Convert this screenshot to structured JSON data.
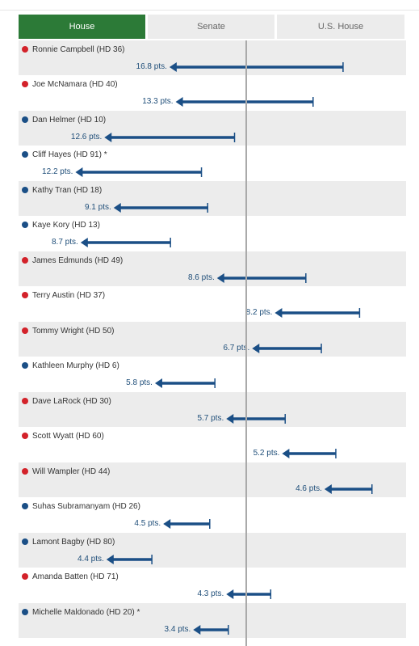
{
  "tabs": [
    {
      "label": "House",
      "active": true
    },
    {
      "label": "Senate",
      "active": false
    },
    {
      "label": "U.S. House",
      "active": false
    }
  ],
  "colors": {
    "republican": "#d3222a",
    "democrat": "#1b4f86",
    "arrow": "#1b4f86",
    "active_tab": "#2c7a37",
    "row_shade": "#ececec",
    "center_line": "#aaaaaa"
  },
  "chart_data": {
    "type": "bar",
    "unit_suffix": " pts.",
    "rows": [
      {
        "name": "Ronnie Campbell (HD 36)",
        "party": "R",
        "shift": 16.8,
        "start": 9.4,
        "end": -7.4,
        "label": "16.8 pts."
      },
      {
        "name": "Joe McNamara (HD 40)",
        "party": "R",
        "shift": 13.3,
        "start": 6.5,
        "end": -6.8,
        "label": "13.3 pts."
      },
      {
        "name": "Dan Helmer (HD 10)",
        "party": "D",
        "shift": 12.6,
        "start": -1.1,
        "end": -13.7,
        "label": "12.6 pts."
      },
      {
        "name": "Cliff Hayes (HD 91) *",
        "party": "D",
        "shift": 12.2,
        "start": -4.3,
        "end": -16.5,
        "label": "12.2 pts."
      },
      {
        "name": "Kathy Tran (HD 18)",
        "party": "D",
        "shift": 9.1,
        "start": -3.7,
        "end": -12.8,
        "label": "9.1 pts."
      },
      {
        "name": "Kaye Kory (HD 13)",
        "party": "D",
        "shift": 8.7,
        "start": -7.3,
        "end": -16.0,
        "label": "8.7 pts."
      },
      {
        "name": "James Edmunds (HD 49)",
        "party": "R",
        "shift": 8.6,
        "start": 5.8,
        "end": -2.8,
        "label": "8.6 pts."
      },
      {
        "name": "Terry Austin (HD 37)",
        "party": "R",
        "shift": 8.2,
        "start": 11.0,
        "end": 2.8,
        "label": "8.2 pts."
      },
      {
        "name": "Tommy Wright (HD 50)",
        "party": "R",
        "shift": 6.7,
        "start": 7.3,
        "end": 0.6,
        "label": "6.7 pts."
      },
      {
        "name": "Kathleen Murphy (HD 6)",
        "party": "D",
        "shift": 5.8,
        "start": -3.0,
        "end": -8.8,
        "label": "5.8 pts."
      },
      {
        "name": "Dave LaRock (HD 30)",
        "party": "R",
        "shift": 5.7,
        "start": 3.8,
        "end": -1.9,
        "label": "5.7 pts."
      },
      {
        "name": "Scott Wyatt (HD 60)",
        "party": "R",
        "shift": 5.2,
        "start": 8.7,
        "end": 3.5,
        "label": "5.2 pts."
      },
      {
        "name": "Will Wampler (HD 44)",
        "party": "R",
        "shift": 4.6,
        "start": 12.2,
        "end": 7.6,
        "label": "4.6 pts."
      },
      {
        "name": "Suhas Subramanyam (HD 26)",
        "party": "D",
        "shift": 4.5,
        "start": -3.5,
        "end": -8.0,
        "label": "4.5 pts."
      },
      {
        "name": "Lamont Bagby (HD 80)",
        "party": "D",
        "shift": 4.4,
        "start": -9.1,
        "end": -13.5,
        "label": "4.4 pts."
      },
      {
        "name": "Amanda Batten (HD 71)",
        "party": "R",
        "shift": 4.3,
        "start": 2.4,
        "end": -1.9,
        "label": "4.3 pts."
      },
      {
        "name": "Michelle Maldonado (HD 20) *",
        "party": "D",
        "shift": 3.4,
        "start": -1.7,
        "end": -5.1,
        "label": "3.4 pts."
      }
    ],
    "xlim": [
      -22,
      15.5
    ]
  }
}
